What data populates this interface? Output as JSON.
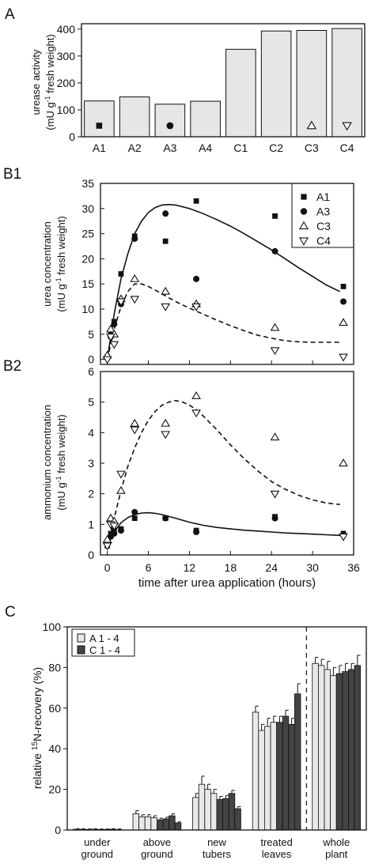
{
  "chart_data": [
    {
      "panel": "A",
      "type": "bar",
      "categories": [
        "A1",
        "A2",
        "A3",
        "A4",
        "C1",
        "C2",
        "C3",
        "C4"
      ],
      "values": [
        133,
        148,
        121,
        132,
        325,
        393,
        395,
        402
      ],
      "markers": [
        "square",
        null,
        "circle",
        null,
        null,
        null,
        "triangle-up",
        "triangle-down"
      ],
      "ylabel_1": "urease activity",
      "ylabel_2": "(mU g-1 fresh weight)",
      "ylim": [
        0,
        420
      ],
      "yticks": [
        "0",
        "100",
        "200",
        "300",
        "400"
      ]
    },
    {
      "panel": "B1",
      "type": "scatter",
      "ylabel_1": "urea concentration",
      "ylabel_2": "(mU g-1 fresh weight)",
      "xlim": [
        -1,
        36
      ],
      "ylim": [
        -1,
        35
      ],
      "yticks": [
        "0",
        "5",
        "10",
        "15",
        "20",
        "25",
        "30",
        "35"
      ],
      "legend_position": "top-right",
      "series": [
        {
          "name": "A1",
          "marker": "square",
          "x": [
            0,
            0.5,
            1,
            2,
            4,
            8.5,
            13,
            24.5,
            34.5
          ],
          "y": [
            0.5,
            5,
            7.5,
            17,
            24.5,
            23.5,
            31.5,
            28.5,
            14.5
          ]
        },
        {
          "name": "A3",
          "marker": "circle",
          "x": [
            0,
            0.5,
            1,
            2,
            4,
            8.5,
            13,
            24.5,
            34.5
          ],
          "y": [
            0.3,
            4.5,
            7,
            11,
            24,
            29,
            16,
            21.5,
            11.5
          ]
        },
        {
          "name": "C3",
          "marker": "triangle-up",
          "x": [
            0,
            0.5,
            1,
            2,
            4,
            8.5,
            13,
            24.5,
            34.5
          ],
          "y": [
            0.8,
            6,
            5,
            12,
            16,
            13.5,
            11,
            6.3,
            7.3
          ]
        },
        {
          "name": "C4",
          "marker": "triangle-down",
          "x": [
            0,
            0.5,
            1,
            2,
            4,
            8.5,
            13,
            24.5,
            34.5
          ],
          "y": [
            0,
            4.5,
            3,
            11.5,
            12,
            10.5,
            10.5,
            1.8,
            0.5
          ]
        }
      ],
      "fits": [
        {
          "style": "solid",
          "x": [
            0,
            1,
            2,
            3,
            4,
            5,
            6,
            7,
            8,
            9,
            10,
            12,
            14,
            16,
            18,
            20,
            22,
            24,
            26,
            28,
            30,
            32,
            34
          ],
          "y": [
            0,
            9,
            16,
            21,
            25,
            27.5,
            29.2,
            30.2,
            30.7,
            30.8,
            30.7,
            30,
            29,
            27.8,
            26.5,
            25,
            23.4,
            21.8,
            20,
            18.2,
            16.5,
            14.8,
            13.5
          ]
        },
        {
          "style": "dashed",
          "x": [
            0,
            1,
            2,
            3,
            4,
            5,
            6,
            7,
            8,
            10,
            12,
            14,
            16,
            18,
            20,
            22,
            24,
            26,
            28,
            30,
            32,
            34
          ],
          "y": [
            0,
            6,
            10.5,
            13.5,
            15,
            15,
            14.5,
            13.8,
            13,
            11.5,
            10.2,
            9,
            7.8,
            6.7,
            5.7,
            4.8,
            4.2,
            3.7,
            3.5,
            3.4,
            3.4,
            3.4
          ]
        }
      ]
    },
    {
      "panel": "B2",
      "type": "scatter",
      "ylabel_1": "ammonium concentration",
      "ylabel_2": "(mU g-1 fresh weight)",
      "xlabel": "time after urea application (hours)",
      "xlim": [
        -1,
        36
      ],
      "ylim": [
        0,
        6
      ],
      "xticks": [
        "0",
        "6",
        "12",
        "18",
        "24",
        "30",
        "36"
      ],
      "yticks": [
        "0",
        "1",
        "2",
        "3",
        "4",
        "5",
        "6"
      ],
      "series": [
        {
          "name": "A1",
          "marker": "square",
          "x": [
            0,
            0.5,
            1,
            2,
            4,
            8.5,
            13,
            24.5,
            34.5
          ],
          "y": [
            0.3,
            0.7,
            0.8,
            0.85,
            1.2,
            1.2,
            0.8,
            1.25,
            0.7
          ]
        },
        {
          "name": "A3",
          "marker": "circle",
          "x": [
            0,
            0.5,
            1,
            2,
            4,
            8.5,
            13,
            24.5,
            34.5
          ],
          "y": [
            0.4,
            0.6,
            0.7,
            0.8,
            1.4,
            1.2,
            0.75,
            1.2,
            0.65
          ]
        },
        {
          "name": "C3",
          "marker": "triangle-up",
          "x": [
            0,
            0.5,
            1,
            2,
            4,
            8.5,
            13,
            24.5,
            34.5
          ],
          "y": [
            0.5,
            1.2,
            1.1,
            2.1,
            4.3,
            4.3,
            5.2,
            3.85,
            3.0
          ]
        },
        {
          "name": "C4",
          "marker": "triangle-down",
          "x": [
            0,
            0.5,
            1,
            2,
            4,
            8.5,
            13,
            24.5,
            34.5
          ],
          "y": [
            0.3,
            1,
            0.95,
            2.65,
            4.1,
            3.95,
            4.65,
            2.0,
            0.6
          ]
        }
      ],
      "fits": [
        {
          "style": "solid",
          "x": [
            0,
            1,
            2,
            3,
            4,
            5,
            6,
            7,
            8,
            10,
            12,
            14,
            16,
            18,
            20,
            22,
            24,
            26,
            28,
            30,
            32,
            34
          ],
          "y": [
            0.3,
            0.75,
            1.05,
            1.22,
            1.32,
            1.37,
            1.38,
            1.36,
            1.32,
            1.2,
            1.07,
            0.97,
            0.9,
            0.85,
            0.81,
            0.78,
            0.75,
            0.72,
            0.7,
            0.68,
            0.66,
            0.64
          ]
        },
        {
          "style": "dashed",
          "x": [
            0,
            1,
            2,
            3,
            4,
            5,
            6,
            7,
            8,
            9,
            10,
            11,
            12,
            13,
            14,
            16,
            18,
            20,
            22,
            24,
            26,
            28,
            30,
            32,
            34
          ],
          "y": [
            0.3,
            1.2,
            2.1,
            2.9,
            3.5,
            4.0,
            4.4,
            4.7,
            4.9,
            5.0,
            5.05,
            5.0,
            4.9,
            4.75,
            4.55,
            4.1,
            3.6,
            3.15,
            2.75,
            2.4,
            2.15,
            1.95,
            1.8,
            1.7,
            1.65
          ]
        }
      ]
    },
    {
      "panel": "C",
      "type": "bar",
      "ylabel_pre": "relative ",
      "ylabel_sup": "15",
      "ylabel_post": "N-recovery (%)",
      "ylim": [
        0,
        100
      ],
      "yticks": [
        "0",
        "20",
        "40",
        "60",
        "80",
        "100"
      ],
      "legend_position": "top-left",
      "series_names": [
        "A 1 - 4",
        "C 1 - 4"
      ],
      "series_colors": [
        "#e8e8e8",
        "#444444"
      ],
      "categories": [
        "under ground",
        "above ground",
        "new tubers",
        "treated leaves",
        "whole plant"
      ],
      "category_lines": [
        [
          "under",
          "ground"
        ],
        [
          "above",
          "ground"
        ],
        [
          "new",
          "tubers"
        ],
        [
          "treated",
          "leaves"
        ],
        [
          "whole",
          "plant"
        ]
      ],
      "values": [
        [
          0.4,
          0.4,
          0.3,
          0.4,
          0.3,
          0.3,
          0.4,
          0.3
        ],
        [
          8,
          6.5,
          6.5,
          6,
          5,
          5.5,
          7,
          3.5
        ],
        [
          16,
          22.5,
          20,
          18,
          15,
          15.5,
          18,
          10.5
        ],
        [
          58,
          49,
          51,
          53,
          53,
          56,
          52,
          67
        ],
        [
          82,
          81,
          79,
          76,
          77,
          78,
          79,
          81
        ]
      ],
      "errors": [
        [
          0.2,
          0.2,
          0.2,
          0.2,
          0.2,
          0.2,
          0.2,
          0.2
        ],
        [
          1.5,
          1,
          1,
          1,
          0.8,
          0.8,
          1,
          0.5
        ],
        [
          2,
          4,
          2.5,
          2,
          1.5,
          1.5,
          1.5,
          1
        ],
        [
          3,
          3,
          4,
          3,
          3,
          3,
          3,
          5
        ],
        [
          3,
          3,
          4,
          4,
          4,
          4,
          3,
          5
        ]
      ],
      "divider_after_category": 3
    }
  ]
}
